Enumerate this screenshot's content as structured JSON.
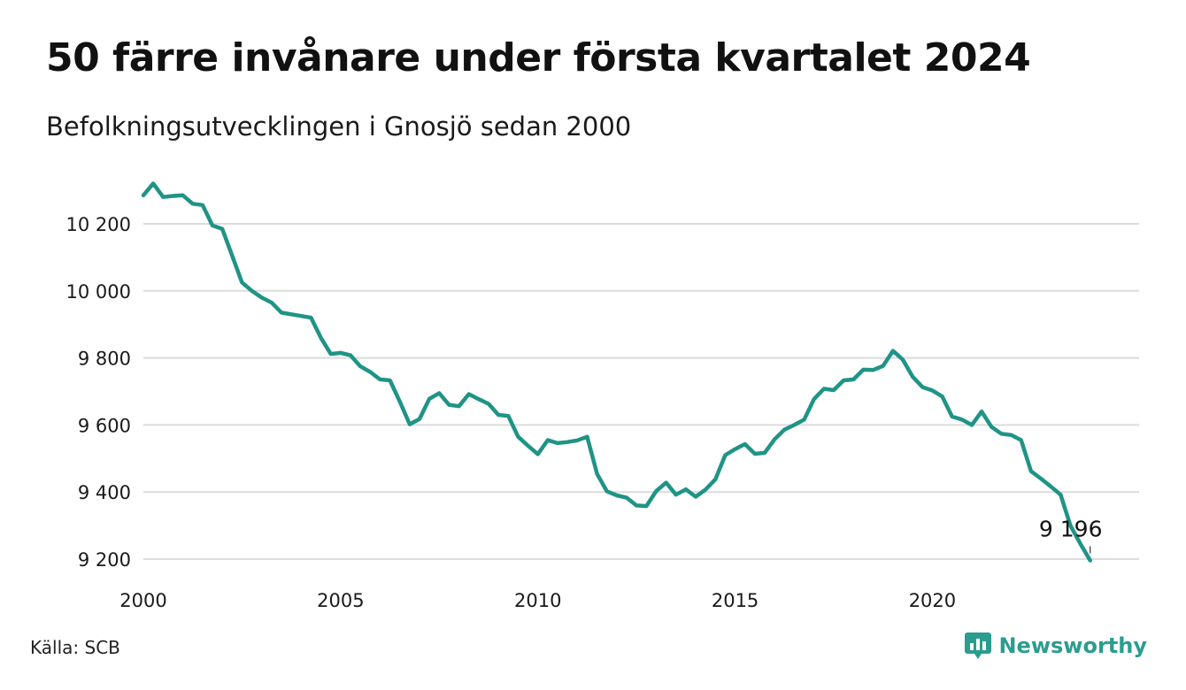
{
  "header": {
    "title": "50 färre invånare under första kvartalet 2024",
    "subtitle": "Befolkningsutvecklingen i Gnosjö sedan 2000"
  },
  "footer": {
    "source_label": "Källa:",
    "source_value": "SCB",
    "brand": "Newsworthy",
    "brand_icon": "bar-chart-speech-bubble-icon"
  },
  "colors": {
    "line": "#1f9486",
    "grid": "#dcdcdc",
    "brand": "#2a9d8f",
    "text": "#111111"
  },
  "chart_data": {
    "type": "line",
    "title": "",
    "xlabel": "",
    "ylabel": "",
    "xlim": [
      2000,
      2024.5
    ],
    "ylim": [
      9200,
      10320
    ],
    "y_ticks": [
      9200,
      9400,
      9600,
      9800,
      10000,
      10200
    ],
    "y_tick_labels": [
      "9 200",
      "9 400",
      "9 600",
      "9 800",
      "10 000",
      "10 200"
    ],
    "x_ticks": [
      2000,
      2005,
      2010,
      2015,
      2020
    ],
    "x_tick_labels": [
      "2000",
      "2005",
      "2010",
      "2015",
      "2020"
    ],
    "grid": true,
    "legend": "none",
    "annotation": {
      "x": "2024 Q1",
      "y": 9196,
      "text": "9 196"
    },
    "series": [
      {
        "x": [
          "2000 Q1",
          "2000 Q2",
          "2000 Q3",
          "2000 Q4",
          "2001 Q1",
          "2001 Q2",
          "2001 Q3",
          "2001 Q4",
          "2002 Q1",
          "2002 Q2",
          "2002 Q3",
          "2002 Q4",
          "2003 Q1",
          "2003 Q2",
          "2003 Q3",
          "2003 Q4",
          "2004 Q1",
          "2004 Q2",
          "2004 Q3",
          "2004 Q4",
          "2005 Q1",
          "2005 Q2",
          "2005 Q3",
          "2005 Q4",
          "2006 Q1",
          "2006 Q2",
          "2006 Q3",
          "2006 Q4",
          "2007 Q1",
          "2007 Q2",
          "2007 Q3",
          "2007 Q4",
          "2008 Q1",
          "2008 Q2",
          "2008 Q3",
          "2008 Q4",
          "2009 Q1",
          "2009 Q2",
          "2009 Q3",
          "2009 Q4",
          "2010 Q1",
          "2010 Q2",
          "2010 Q3",
          "2010 Q4",
          "2011 Q1",
          "2011 Q2",
          "2011 Q3",
          "2011 Q4",
          "2012 Q1",
          "2012 Q2",
          "2012 Q3",
          "2012 Q4",
          "2013 Q1",
          "2013 Q2",
          "2013 Q3",
          "2013 Q4",
          "2014 Q1",
          "2014 Q2",
          "2014 Q3",
          "2014 Q4",
          "2015 Q1",
          "2015 Q2",
          "2015 Q3",
          "2015 Q4",
          "2016 Q1",
          "2016 Q2",
          "2016 Q3",
          "2016 Q4",
          "2017 Q1",
          "2017 Q2",
          "2017 Q3",
          "2017 Q4",
          "2018 Q1",
          "2018 Q2",
          "2018 Q3",
          "2018 Q4",
          "2019 Q1",
          "2019 Q2",
          "2019 Q3",
          "2019 Q4",
          "2020 Q1",
          "2020 Q2",
          "2020 Q3",
          "2020 Q4",
          "2021 Q1",
          "2021 Q2",
          "2021 Q3",
          "2021 Q4",
          "2022 Q1",
          "2022 Q2",
          "2022 Q3",
          "2022 Q4",
          "2023 Q1",
          "2023 Q2",
          "2023 Q3",
          "2023 Q4",
          "2024 Q1"
        ],
        "values": [
          10285,
          10320,
          10280,
          10283,
          10285,
          10260,
          10256,
          10195,
          10185,
          10105,
          10025,
          10000,
          9980,
          9965,
          9935,
          9930,
          9925,
          9920,
          9860,
          9812,
          9815,
          9808,
          9775,
          9758,
          9736,
          9733,
          9670,
          9602,
          9618,
          9678,
          9695,
          9660,
          9656,
          9692,
          9677,
          9663,
          9630,
          9627,
          9565,
          9538,
          9513,
          9555,
          9546,
          9549,
          9554,
          9565,
          9454,
          9402,
          9390,
          9383,
          9360,
          9358,
          9403,
          9428,
          9392,
          9408,
          9386,
          9407,
          9438,
          9510,
          9528,
          9543,
          9514,
          9517,
          9557,
          9586,
          9600,
          9616,
          9677,
          9708,
          9704,
          9733,
          9736,
          9765,
          9764,
          9776,
          9821,
          9795,
          9744,
          9713,
          9703,
          9685,
          9625,
          9616,
          9600,
          9640,
          9594,
          9574,
          9570,
          9555,
          9462,
          9440,
          9417,
          9392,
          9300,
          9246,
          9196
        ]
      }
    ]
  }
}
